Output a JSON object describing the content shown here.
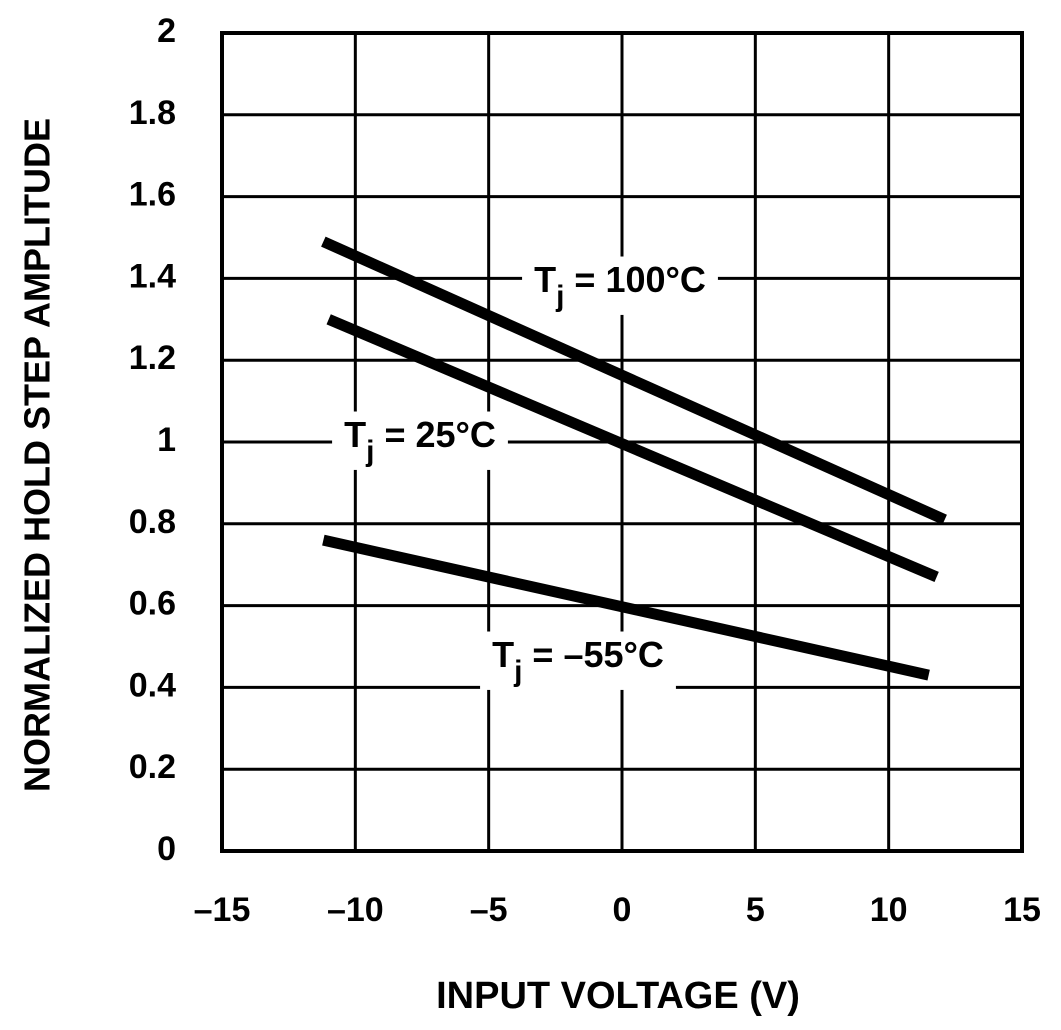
{
  "chart_data": {
    "type": "line",
    "x_label": "INPUT VOLTAGE (V)",
    "y_label": "NORMALIZED HOLD STEP AMPLITUDE",
    "series": [
      {
        "name": "Tj = 100°C",
        "color": "#000000",
        "x": [
          -11.2,
          12.1
        ],
        "values": [
          1.49,
          0.81
        ]
      },
      {
        "name": "Tj = 25°C",
        "color": "#000000",
        "x": [
          -11.0,
          11.8
        ],
        "values": [
          1.3,
          0.67
        ]
      },
      {
        "name": "Tj = –55°C",
        "color": "#000000",
        "x": [
          -11.2,
          11.5
        ],
        "values": [
          0.76,
          0.43
        ]
      }
    ],
    "xlim": [
      -15,
      15
    ],
    "ylim": [
      0,
      2
    ],
    "xticks": [
      {
        "value": -15,
        "label": "–15"
      },
      {
        "value": -10,
        "label": "–10"
      },
      {
        "value": -5,
        "label": "–5"
      },
      0,
      5,
      10,
      15
    ],
    "yticks": [
      0,
      0.2,
      0.4,
      0.6,
      0.8,
      1,
      1.2,
      1.4,
      1.6,
      1.8,
      2
    ],
    "grid": true
  }
}
